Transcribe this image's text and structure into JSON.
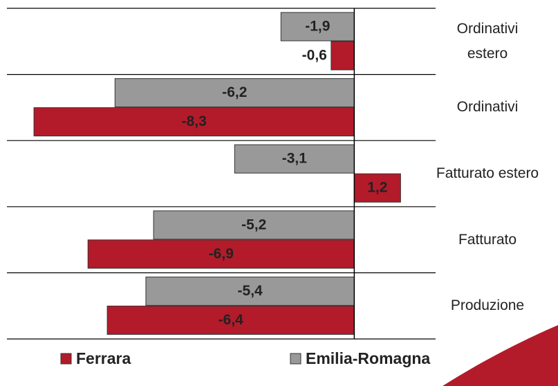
{
  "chart_data": {
    "type": "hbar",
    "categories": [
      "Ordinativi estero",
      "Ordinativi",
      "Fatturato estero",
      "Fatturato",
      "Produzione"
    ],
    "series": [
      {
        "name": "Emilia-Romagna",
        "color": "#999999",
        "values": [
          -1.9,
          -6.2,
          -3.1,
          -5.2,
          -5.4
        ],
        "value_labels": [
          "-1,9",
          "-6,2",
          "-3,1",
          "-5,2",
          "-5,4"
        ]
      },
      {
        "name": "Ferrara",
        "color": "#b31b2a",
        "values": [
          -0.6,
          -8.3,
          1.2,
          -6.9,
          -6.4
        ],
        "value_labels": [
          "-0,6",
          "-8,3",
          "1,2",
          "-6,9",
          "-6,4"
        ]
      }
    ],
    "xlim": [
      -9,
      2
    ]
  }
}
